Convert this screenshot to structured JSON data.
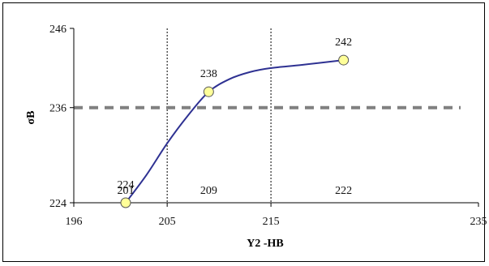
{
  "chart_data": {
    "type": "line",
    "xlabel": "Y2 -HB",
    "ylabel": "σB",
    "xlim": [
      196,
      235
    ],
    "ylim": [
      224,
      246
    ],
    "x_ticks": [
      196,
      205,
      215,
      235
    ],
    "y_ticks": [
      224,
      236,
      246
    ],
    "x_tick_labels": [
      "196",
      "205",
      "215",
      "235"
    ],
    "y_tick_labels": [
      "224",
      "236",
      "246"
    ],
    "grid": "vertical dotted lines at x=205 and x=215",
    "reference_line": {
      "y": 236,
      "style": "dashed",
      "color": "#808080"
    },
    "series": [
      {
        "color": "#2e3192",
        "marker_color": "#ffff99",
        "points": [
          {
            "x": 201,
            "y": 224,
            "label": "224"
          },
          {
            "x": 209,
            "y": 238,
            "label": "238"
          },
          {
            "x": 222,
            "y": 242,
            "label": "242"
          }
        ],
        "curve": [
          {
            "x": 201,
            "y": 224
          },
          {
            "x": 203,
            "y": 227.5
          },
          {
            "x": 205,
            "y": 231.5
          },
          {
            "x": 207,
            "y": 235
          },
          {
            "x": 209,
            "y": 238
          },
          {
            "x": 211,
            "y": 239.6
          },
          {
            "x": 213,
            "y": 240.5
          },
          {
            "x": 215,
            "y": 241
          },
          {
            "x": 218,
            "y": 241.4
          },
          {
            "x": 222,
            "y": 242
          }
        ]
      }
    ],
    "annotations_below": [
      {
        "x": 201,
        "label": "201"
      },
      {
        "x": 209,
        "label": "209"
      },
      {
        "x": 222,
        "label": "222"
      }
    ]
  }
}
